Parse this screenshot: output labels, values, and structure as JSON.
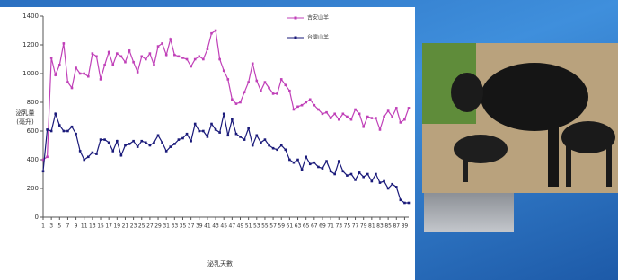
{
  "chart_data": {
    "type": "line",
    "y_label": "泌乳量\n(毫升)",
    "x_label": "泌乳天數",
    "x": [
      1,
      2,
      3,
      4,
      5,
      6,
      7,
      8,
      9,
      10,
      11,
      12,
      13,
      14,
      15,
      16,
      17,
      18,
      19,
      20,
      21,
      22,
      23,
      24,
      25,
      26,
      27,
      28,
      29,
      30,
      31,
      32,
      33,
      34,
      35,
      36,
      37,
      38,
      39,
      40,
      41,
      42,
      43,
      44,
      45,
      46,
      47,
      48,
      49,
      50,
      51,
      52,
      53,
      54,
      55,
      56,
      57,
      58,
      59,
      60,
      61,
      62,
      63,
      64,
      65,
      66,
      67,
      68,
      69,
      70,
      71,
      72,
      73,
      74,
      75,
      76,
      77,
      78,
      79,
      80,
      81,
      82,
      83,
      84,
      85,
      86,
      87,
      88,
      89,
      90
    ],
    "xlim": [
      1,
      90
    ],
    "xticks": [
      1,
      3,
      5,
      7,
      9,
      11,
      13,
      15,
      17,
      19,
      21,
      23,
      25,
      27,
      29,
      31,
      33,
      35,
      37,
      39,
      41,
      43,
      45,
      47,
      49,
      51,
      53,
      55,
      57,
      59,
      61,
      63,
      65,
      67,
      69,
      71,
      73,
      75,
      77,
      79,
      81,
      83,
      85,
      87,
      89
    ],
    "ylim": [
      0,
      1400
    ],
    "yticks": [
      0,
      200,
      400,
      600,
      800,
      1000,
      1200,
      1400
    ],
    "series": [
      {
        "name": "吉安山羊",
        "color": "#c040b8",
        "values": [
          400,
          420,
          1110,
          990,
          1060,
          1210,
          940,
          900,
          1040,
          1000,
          1000,
          980,
          1140,
          1120,
          960,
          1060,
          1150,
          1060,
          1140,
          1120,
          1080,
          1160,
          1080,
          1010,
          1120,
          1100,
          1140,
          1060,
          1190,
          1210,
          1130,
          1240,
          1130,
          1120,
          1110,
          1100,
          1050,
          1100,
          1120,
          1100,
          1170,
          1280,
          1300,
          1100,
          1020,
          960,
          820,
          790,
          800,
          870,
          940,
          1070,
          950,
          880,
          940,
          900,
          860,
          860,
          960,
          920,
          880,
          750,
          770,
          780,
          800,
          820,
          780,
          750,
          720,
          730,
          690,
          720,
          680,
          720,
          700,
          680,
          750,
          720,
          630,
          700,
          690,
          690,
          610,
          700,
          740,
          700,
          760,
          660,
          680,
          760
        ]
      },
      {
        "name": "台灣山羊",
        "color": "#1a1a7a",
        "values": [
          320,
          610,
          600,
          720,
          640,
          600,
          600,
          630,
          580,
          460,
          400,
          420,
          450,
          440,
          540,
          540,
          520,
          460,
          530,
          430,
          500,
          510,
          530,
          490,
          530,
          520,
          500,
          520,
          570,
          520,
          460,
          490,
          510,
          540,
          550,
          580,
          530,
          650,
          600,
          600,
          560,
          650,
          610,
          590,
          720,
          570,
          680,
          580,
          560,
          540,
          620,
          500,
          570,
          520,
          540,
          500,
          480,
          470,
          500,
          470,
          400,
          380,
          400,
          330,
          420,
          370,
          380,
          350,
          340,
          390,
          320,
          300,
          390,
          320,
          290,
          300,
          260,
          310,
          280,
          300,
          250,
          300,
          240,
          250,
          200,
          230,
          210,
          120,
          100,
          100
        ]
      }
    ]
  }
}
